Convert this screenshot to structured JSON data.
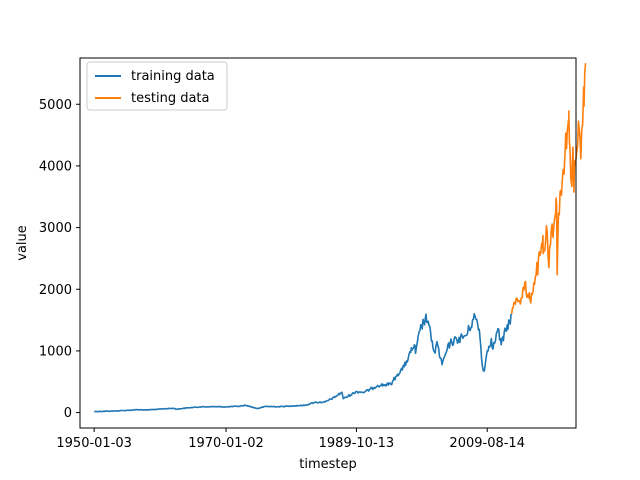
{
  "chart_data": {
    "type": "line",
    "title": "",
    "xlabel": "timestep",
    "ylabel": "value",
    "x_type": "date",
    "xlim": [
      "1947-11-10",
      "2023-02-01"
    ],
    "ylim": [
      -250,
      5750
    ],
    "xticks": [
      {
        "date": "1950-01-03",
        "label": "1950-01-03"
      },
      {
        "date": "1970-01-02",
        "label": "1970-01-02"
      },
      {
        "date": "1989-10-13",
        "label": "1989-10-13"
      },
      {
        "date": "2009-08-14",
        "label": "2009-08-14"
      }
    ],
    "yticks": [
      0,
      1000,
      2000,
      3000,
      4000,
      5000
    ],
    "grid": false,
    "legend": "top-left",
    "series": [
      {
        "name": "training data",
        "color": "#1f77b4",
        "points": [
          [
            "1950-01-03",
            17
          ],
          [
            "1953-01-01",
            25
          ],
          [
            "1955-01-01",
            36
          ],
          [
            "1956-07-01",
            47
          ],
          [
            "1958-01-01",
            41
          ],
          [
            "1960-01-01",
            58
          ],
          [
            "1962-01-01",
            70
          ],
          [
            "1962-07-01",
            55
          ],
          [
            "1964-01-01",
            75
          ],
          [
            "1966-01-01",
            92
          ],
          [
            "1968-01-01",
            96
          ],
          [
            "1970-01-02",
            92
          ],
          [
            "1972-01-01",
            103
          ],
          [
            "1973-01-01",
            118
          ],
          [
            "1974-10-01",
            65
          ],
          [
            "1976-01-01",
            100
          ],
          [
            "1978-01-01",
            95
          ],
          [
            "1980-01-01",
            108
          ],
          [
            "1982-01-01",
            118
          ],
          [
            "1983-06-01",
            165
          ],
          [
            "1985-01-01",
            170
          ],
          [
            "1986-06-01",
            245
          ],
          [
            "1987-08-01",
            330
          ],
          [
            "1987-10-20",
            225
          ],
          [
            "1989-10-13",
            340
          ],
          [
            "1991-01-01",
            330
          ],
          [
            "1993-01-01",
            440
          ],
          [
            "1995-01-01",
            460
          ],
          [
            "1996-01-01",
            620
          ],
          [
            "1997-01-01",
            740
          ],
          [
            "1998-01-01",
            975
          ],
          [
            "1998-08-01",
            1100
          ],
          [
            "1998-10-01",
            960
          ],
          [
            "1999-06-01",
            1330
          ],
          [
            "2000-03-24",
            1527
          ],
          [
            "2000-09-01",
            1480
          ],
          [
            "2001-03-01",
            1160
          ],
          [
            "2001-09-21",
            965
          ],
          [
            "2002-01-01",
            1150
          ],
          [
            "2002-07-01",
            880
          ],
          [
            "2002-10-09",
            777
          ],
          [
            "2003-06-01",
            980
          ],
          [
            "2004-01-01",
            1130
          ],
          [
            "2005-01-01",
            1180
          ],
          [
            "2006-06-01",
            1250
          ],
          [
            "2007-10-09",
            1565
          ],
          [
            "2008-06-01",
            1350
          ],
          [
            "2008-11-20",
            752
          ],
          [
            "2009-03-09",
            677
          ],
          [
            "2009-08-14",
            1000
          ],
          [
            "2010-04-01",
            1200
          ],
          [
            "2010-07-01",
            1030
          ],
          [
            "2011-04-01",
            1360
          ],
          [
            "2011-10-01",
            1100
          ],
          [
            "2012-06-01",
            1330
          ],
          [
            "2013-01-01",
            1480
          ],
          [
            "2013-05-01",
            1600
          ]
        ]
      },
      {
        "name": "testing data",
        "color": "#ff7f0e",
        "points": [
          [
            "2013-05-01",
            1600
          ],
          [
            "2013-12-31",
            1848
          ],
          [
            "2014-10-15",
            1860
          ],
          [
            "2015-05-01",
            2110
          ],
          [
            "2015-08-25",
            1870
          ],
          [
            "2016-02-11",
            1830
          ],
          [
            "2016-12-01",
            2200
          ],
          [
            "2017-12-31",
            2673
          ],
          [
            "2018-01-26",
            2870
          ],
          [
            "2018-02-08",
            2580
          ],
          [
            "2018-09-20",
            2930
          ],
          [
            "2018-12-24",
            2350
          ],
          [
            "2019-04-30",
            2945
          ],
          [
            "2019-08-05",
            2840
          ],
          [
            "2019-12-31",
            3230
          ],
          [
            "2020-02-19",
            3386
          ],
          [
            "2020-03-23",
            2237
          ],
          [
            "2020-06-08",
            3230
          ],
          [
            "2020-09-02",
            3580
          ],
          [
            "2020-12-31",
            3756
          ],
          [
            "2021-06-01",
            4200
          ],
          [
            "2021-12-31",
            4766
          ],
          [
            "2022-01-03",
            4796
          ],
          [
            "2022-03-01",
            4300
          ],
          [
            "2022-06-16",
            3666
          ],
          [
            "2022-08-16",
            4305
          ],
          [
            "2022-10-12",
            3577
          ],
          [
            "2022-11-30",
            4080
          ],
          [
            "2023-02-01",
            4119
          ],
          [
            "2023-07-31",
            4588
          ],
          [
            "2023-10-27",
            4117
          ],
          [
            "2024-03-28",
            5254
          ],
          [
            "2024-04-19",
            4967
          ],
          [
            "2024-07-16",
            5667
          ]
        ]
      }
    ]
  }
}
